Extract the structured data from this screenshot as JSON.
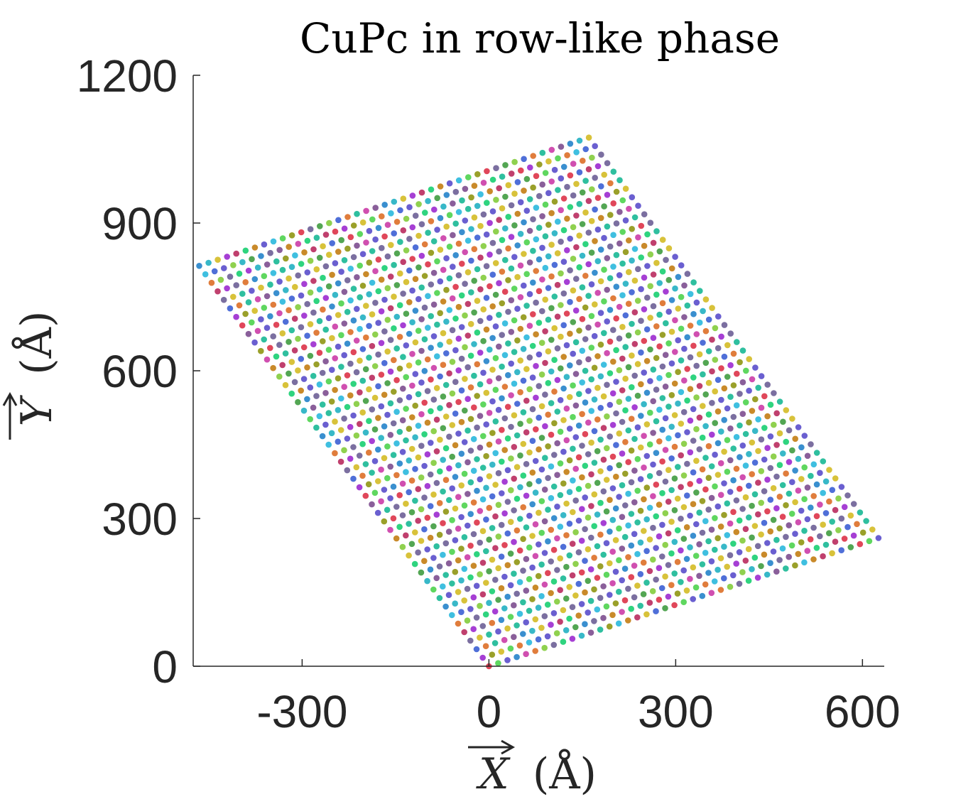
{
  "chart_data": {
    "type": "scatter",
    "title": "CuPc in row-like phase",
    "xlabel": "X (Å)",
    "ylabel": "Y (Å)",
    "xlabel_symbol": "X",
    "xlabel_unit": "(Å)",
    "ylabel_symbol": "Y",
    "ylabel_unit": "(Å)",
    "xlim": [
      -475,
      635
    ],
    "ylim": [
      0,
      1200
    ],
    "xticks": [
      -300,
      0,
      300,
      600
    ],
    "yticks": [
      0,
      300,
      600,
      900,
      1200
    ],
    "xtick_labels": [
      "-300",
      "0",
      "300",
      "600"
    ],
    "ytick_labels": [
      "0",
      "300",
      "600",
      "900",
      "1200"
    ],
    "grid": false,
    "legend": "none",
    "lattice": {
      "origin": [
        0,
        0
      ],
      "a": [
        14.9,
        6.2
      ],
      "b": [
        -9.9,
        17.3
      ],
      "n_a": 43,
      "n_b": 48
    },
    "point_colors": [
      "#e0475a",
      "#3a8fcf",
      "#8fd14f",
      "#a63fd4",
      "#2fbf9f",
      "#c98a2a",
      "#4f6fd8",
      "#5fd75f",
      "#d04fb0",
      "#7b6fa0",
      "#38b8c8",
      "#9aa02a",
      "#c0406e",
      "#53a653",
      "#6a5fd0",
      "#e07d3c",
      "#2fd47f",
      "#8a5f9a",
      "#3fbfe0",
      "#d8c23a"
    ]
  }
}
